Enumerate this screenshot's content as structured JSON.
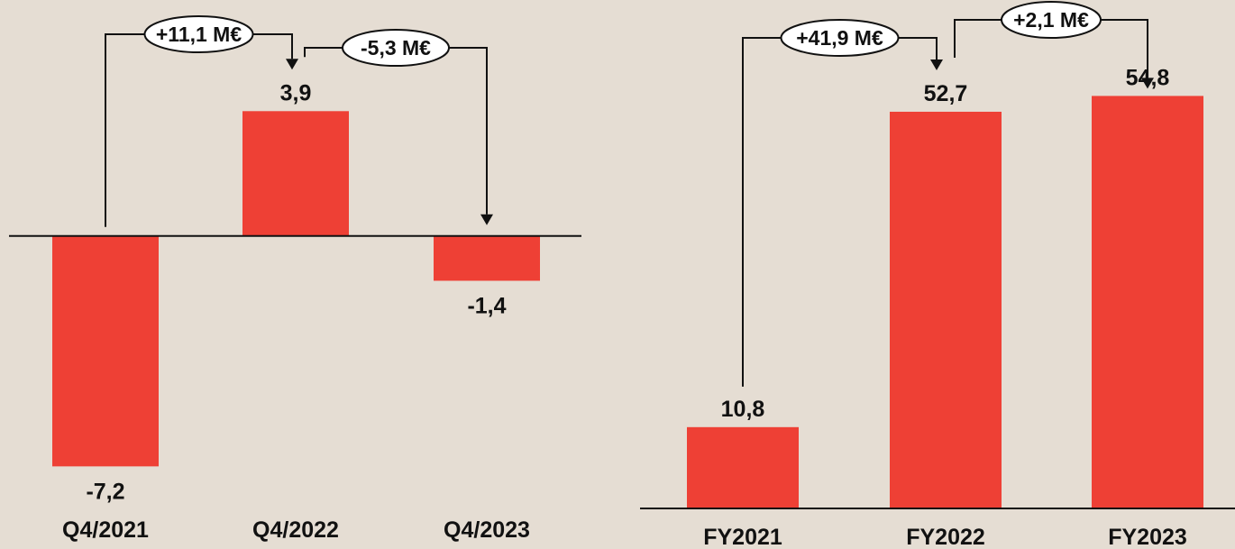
{
  "colors": {
    "background": "#e5ddd3",
    "bar": "#ee4035",
    "line": "#111111"
  },
  "chart_data": [
    {
      "type": "bar",
      "categories": [
        "Q4/2021",
        "Q4/2022",
        "Q4/2023"
      ],
      "values": [
        -7.2,
        3.9,
        -1.4
      ],
      "value_labels": [
        "-7,2",
        "3,9",
        "-1,4"
      ],
      "ylim": [
        -7.5,
        4.5
      ],
      "grid": false,
      "annotations": [
        {
          "from": 0,
          "to": 1,
          "text": "+11,1 M€"
        },
        {
          "from": 1,
          "to": 2,
          "text": "-5,3 M€"
        }
      ]
    },
    {
      "type": "bar",
      "categories": [
        "FY2021",
        "FY2022",
        "FY2023"
      ],
      "values": [
        10.8,
        52.7,
        54.8
      ],
      "value_labels": [
        "10,8",
        "52,7",
        "54,8"
      ],
      "ylim": [
        0,
        60
      ],
      "grid": false,
      "annotations": [
        {
          "from": 0,
          "to": 1,
          "text": "+41,9 M€"
        },
        {
          "from": 1,
          "to": 2,
          "text": "+2,1 M€"
        }
      ]
    }
  ]
}
